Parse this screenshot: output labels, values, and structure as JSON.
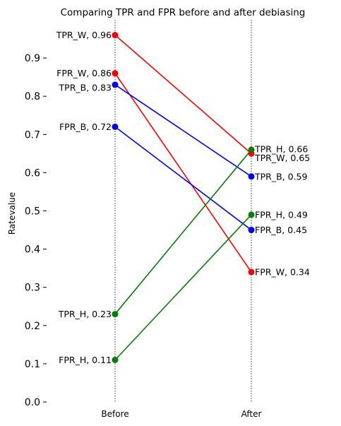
{
  "chart_data": {
    "type": "line",
    "title": "Comparing TPR and FPR before and after debiasing",
    "ylabel": "Ratevalue",
    "xlabel": "",
    "categories": [
      "Before",
      "After"
    ],
    "ylim": [
      0.0,
      1.0
    ],
    "yticks": [
      "0.0",
      "0.1",
      "0.2",
      "0.3",
      "0.4",
      "0.5",
      "0.6",
      "0.7",
      "0.8",
      "0.9"
    ],
    "grid": false,
    "series": [
      {
        "name": "TPR_W",
        "color": "#ff0000",
        "values": [
          0.96,
          0.65
        ],
        "labels": [
          "TPR_W, 0.96",
          "TPR_W, 0.65"
        ]
      },
      {
        "name": "FPR_W",
        "color": "#ff0000",
        "values": [
          0.86,
          0.34
        ],
        "labels": [
          "FPR_W, 0.86",
          "FPR_W, 0.34"
        ]
      },
      {
        "name": "TPR_B",
        "color": "#0000ff",
        "values": [
          0.83,
          0.59
        ],
        "labels": [
          "TPR_B, 0.83",
          "TPR_B, 0.59"
        ]
      },
      {
        "name": "FPR_B",
        "color": "#0000ff",
        "values": [
          0.72,
          0.45
        ],
        "labels": [
          "FPR_B, 0.72",
          "FPR_B, 0.45"
        ]
      },
      {
        "name": "TPR_H",
        "color": "#008000",
        "values": [
          0.23,
          0.66
        ],
        "labels": [
          "TPR_H, 0.23",
          "TPR_H, 0.66"
        ]
      },
      {
        "name": "FPR_H",
        "color": "#008000",
        "values": [
          0.11,
          0.49
        ],
        "labels": [
          "FPR_H, 0.11",
          "FPR_H, 0.49"
        ]
      }
    ]
  }
}
